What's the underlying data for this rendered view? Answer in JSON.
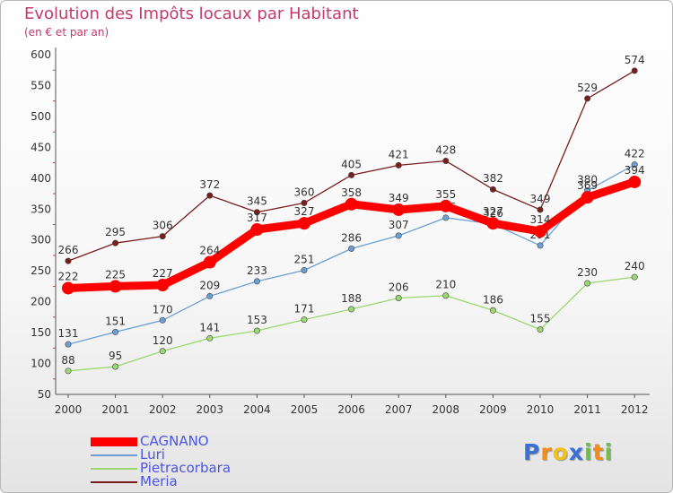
{
  "chart_data": {
    "type": "line",
    "title": "Evolution des Impôts locaux par Habitant",
    "subtitle": "(en € et par an)",
    "xlabel": "",
    "ylabel": "",
    "categories": [
      "2000",
      "2001",
      "2002",
      "2003",
      "2004",
      "2005",
      "2006",
      "2007",
      "2008",
      "2009",
      "2010",
      "2011",
      "2012"
    ],
    "y_ticks": [
      50,
      100,
      150,
      200,
      250,
      300,
      350,
      400,
      450,
      500,
      550,
      600
    ],
    "ylim": [
      50,
      600
    ],
    "grid": false,
    "legend_position": "bottom-left",
    "series": [
      {
        "name": "Meria",
        "color": "#7a1d1d",
        "values": [
          266,
          295,
          306,
          372,
          345,
          360,
          405,
          421,
          428,
          382,
          349,
          529,
          574
        ]
      },
      {
        "name": "Pietracorbara",
        "color": "#9bd870",
        "values": [
          88,
          95,
          120,
          141,
          153,
          171,
          188,
          206,
          210,
          186,
          155,
          230,
          240
        ]
      },
      {
        "name": "Luri",
        "color": "#6ca0d4",
        "values": [
          131,
          151,
          170,
          209,
          233,
          251,
          286,
          307,
          336,
          326,
          291,
          380,
          422
        ]
      },
      {
        "name": "CAGNANO",
        "color": "#ff0000",
        "values": [
          222,
          225,
          227,
          264,
          317,
          327,
          358,
          349,
          355,
          327,
          314,
          369,
          394
        ]
      }
    ],
    "legend": [
      {
        "label": "CAGNANO",
        "color": "#ff0000",
        "text_color": "#4c56e0"
      },
      {
        "label": "Luri",
        "color": "#6ca0d4",
        "text_color": "#4c56e0"
      },
      {
        "label": "Pietracorbara",
        "color": "#9bd870",
        "text_color": "#4c56e0"
      },
      {
        "label": "Meria",
        "color": "#7a1d1d",
        "text_color": "#4c56e0"
      }
    ]
  },
  "brand": {
    "letters": [
      "P",
      "r",
      "o",
      "x",
      "i",
      "t",
      "i"
    ],
    "colors": [
      "#3a6fd8",
      "#f28c1a",
      "#f2c01a",
      "#3a6fd8",
      "#6cc04a",
      "#f28c1a",
      "#6cc04a"
    ]
  }
}
